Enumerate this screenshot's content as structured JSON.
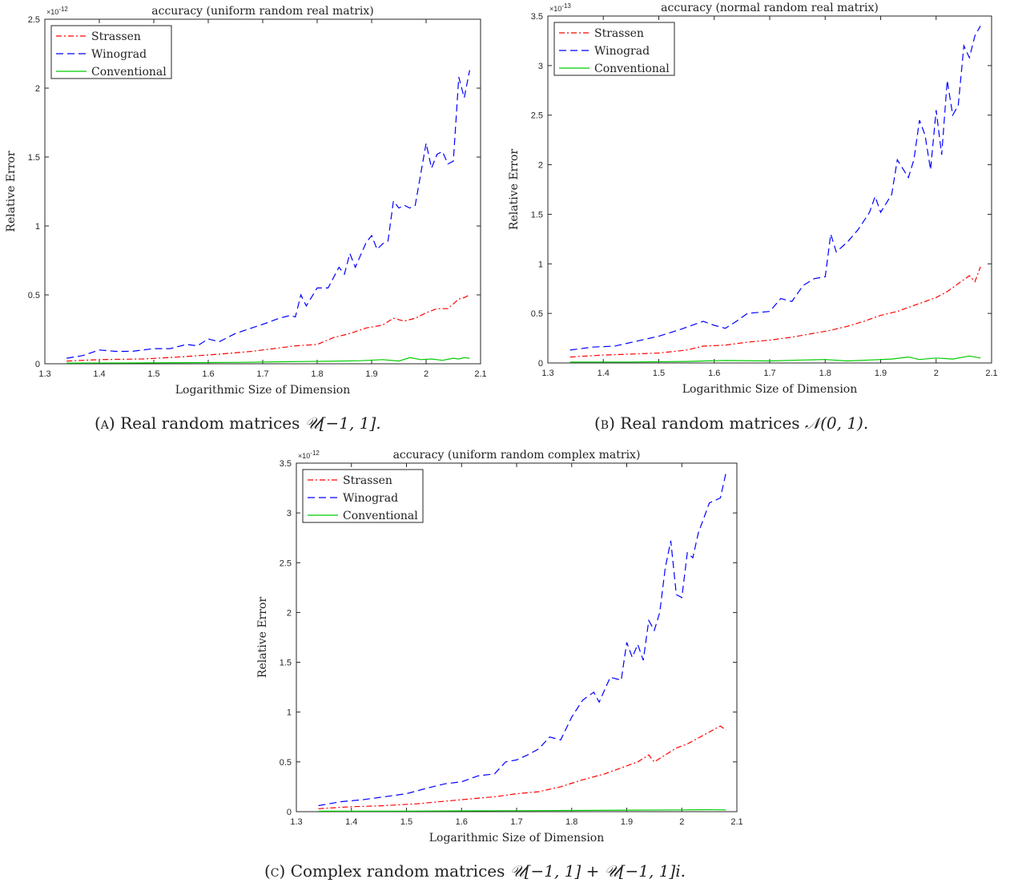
{
  "chart_data": [
    {
      "type": "line",
      "title": "accuracy (uniform random real matrix)",
      "xlabel": "Logarithmic Size of Dimension",
      "ylabel": "Relative Error",
      "exponent": "×10",
      "exponent_power": "-12",
      "xlim": [
        1.3,
        2.1
      ],
      "ylim": [
        0,
        2.5
      ],
      "xticks": [
        "1.3",
        "1.4",
        "1.5",
        "1.6",
        "1.7",
        "1.8",
        "1.9",
        "2",
        "2.1"
      ],
      "yticks": [
        "0",
        "0.5",
        "1",
        "1.5",
        "2",
        "2.5"
      ],
      "legend_position": "top-left",
      "grid": false,
      "series": [
        {
          "name": "Strassen",
          "color": "#ff0000",
          "dash": "dash-dot",
          "points": [
            [
              1.34,
              0.02
            ],
            [
              1.4,
              0.03
            ],
            [
              1.48,
              0.035
            ],
            [
              1.55,
              0.05
            ],
            [
              1.62,
              0.07
            ],
            [
              1.68,
              0.09
            ],
            [
              1.72,
              0.11
            ],
            [
              1.76,
              0.13
            ],
            [
              1.8,
              0.14
            ],
            [
              1.83,
              0.19
            ],
            [
              1.86,
              0.22
            ],
            [
              1.89,
              0.26
            ],
            [
              1.92,
              0.28
            ],
            [
              1.94,
              0.33
            ],
            [
              1.96,
              0.31
            ],
            [
              1.98,
              0.33
            ],
            [
              2.0,
              0.37
            ],
            [
              2.02,
              0.4
            ],
            [
              2.04,
              0.4
            ],
            [
              2.06,
              0.47
            ],
            [
              2.07,
              0.48
            ],
            [
              2.08,
              0.5
            ]
          ]
        },
        {
          "name": "Winograd",
          "color": "#0000ff",
          "dash": "dashed",
          "points": [
            [
              1.34,
              0.04
            ],
            [
              1.37,
              0.06
            ],
            [
              1.4,
              0.1
            ],
            [
              1.43,
              0.09
            ],
            [
              1.46,
              0.09
            ],
            [
              1.5,
              0.11
            ],
            [
              1.53,
              0.11
            ],
            [
              1.56,
              0.14
            ],
            [
              1.58,
              0.13
            ],
            [
              1.6,
              0.18
            ],
            [
              1.62,
              0.16
            ],
            [
              1.65,
              0.22
            ],
            [
              1.68,
              0.26
            ],
            [
              1.71,
              0.3
            ],
            [
              1.73,
              0.33
            ],
            [
              1.75,
              0.35
            ],
            [
              1.76,
              0.34
            ],
            [
              1.77,
              0.5
            ],
            [
              1.78,
              0.42
            ],
            [
              1.8,
              0.55
            ],
            [
              1.82,
              0.55
            ],
            [
              1.84,
              0.7
            ],
            [
              1.85,
              0.65
            ],
            [
              1.86,
              0.8
            ],
            [
              1.87,
              0.7
            ],
            [
              1.89,
              0.88
            ],
            [
              1.9,
              0.93
            ],
            [
              1.91,
              0.83
            ],
            [
              1.92,
              0.87
            ],
            [
              1.93,
              0.89
            ],
            [
              1.94,
              1.18
            ],
            [
              1.95,
              1.13
            ],
            [
              1.96,
              1.15
            ],
            [
              1.97,
              1.13
            ],
            [
              1.98,
              1.15
            ],
            [
              2.0,
              1.6
            ],
            [
              2.01,
              1.42
            ],
            [
              2.02,
              1.52
            ],
            [
              2.03,
              1.54
            ],
            [
              2.04,
              1.45
            ],
            [
              2.05,
              1.47
            ],
            [
              2.06,
              2.08
            ],
            [
              2.07,
              1.93
            ],
            [
              2.08,
              2.13
            ]
          ]
        },
        {
          "name": "Conventional",
          "color": "#00cc00",
          "dash": "solid",
          "points": [
            [
              1.34,
              0.005
            ],
            [
              1.45,
              0.006
            ],
            [
              1.55,
              0.008
            ],
            [
              1.65,
              0.01
            ],
            [
              1.75,
              0.015
            ],
            [
              1.82,
              0.018
            ],
            [
              1.88,
              0.022
            ],
            [
              1.92,
              0.03
            ],
            [
              1.95,
              0.02
            ],
            [
              1.97,
              0.045
            ],
            [
              1.99,
              0.03
            ],
            [
              2.01,
              0.035
            ],
            [
              2.03,
              0.025
            ],
            [
              2.05,
              0.04
            ],
            [
              2.06,
              0.035
            ],
            [
              2.07,
              0.045
            ],
            [
              2.08,
              0.04
            ]
          ]
        }
      ]
    },
    {
      "type": "line",
      "title": "accuracy (normal random real matrix)",
      "xlabel": "Logarithmic Size of Dimension",
      "ylabel": "Relative Error",
      "exponent": "×10",
      "exponent_power": "-13",
      "xlim": [
        1.3,
        2.1
      ],
      "ylim": [
        0,
        3.5
      ],
      "xticks": [
        "1.3",
        "1.4",
        "1.5",
        "1.6",
        "1.7",
        "1.8",
        "1.9",
        "2",
        "2.1"
      ],
      "yticks": [
        "0",
        "0.5",
        "1",
        "1.5",
        "2",
        "2.5",
        "3",
        "3.5"
      ],
      "legend_position": "top-left",
      "grid": false,
      "series": [
        {
          "name": "Strassen",
          "color": "#ff0000",
          "dash": "dash-dot",
          "points": [
            [
              1.34,
              0.06
            ],
            [
              1.4,
              0.08
            ],
            [
              1.45,
              0.09
            ],
            [
              1.5,
              0.1
            ],
            [
              1.55,
              0.13
            ],
            [
              1.58,
              0.17
            ],
            [
              1.62,
              0.18
            ],
            [
              1.66,
              0.21
            ],
            [
              1.7,
              0.23
            ],
            [
              1.74,
              0.26
            ],
            [
              1.78,
              0.3
            ],
            [
              1.81,
              0.33
            ],
            [
              1.84,
              0.37
            ],
            [
              1.87,
              0.42
            ],
            [
              1.9,
              0.48
            ],
            [
              1.93,
              0.52
            ],
            [
              1.96,
              0.58
            ],
            [
              1.98,
              0.62
            ],
            [
              2.0,
              0.66
            ],
            [
              2.02,
              0.72
            ],
            [
              2.04,
              0.8
            ],
            [
              2.06,
              0.88
            ],
            [
              2.07,
              0.82
            ],
            [
              2.08,
              0.97
            ]
          ]
        },
        {
          "name": "Winograd",
          "color": "#0000ff",
          "dash": "dashed",
          "points": [
            [
              1.34,
              0.13
            ],
            [
              1.38,
              0.16
            ],
            [
              1.42,
              0.17
            ],
            [
              1.46,
              0.22
            ],
            [
              1.5,
              0.27
            ],
            [
              1.54,
              0.34
            ],
            [
              1.58,
              0.42
            ],
            [
              1.6,
              0.38
            ],
            [
              1.62,
              0.35
            ],
            [
              1.64,
              0.42
            ],
            [
              1.66,
              0.5
            ],
            [
              1.7,
              0.52
            ],
            [
              1.72,
              0.65
            ],
            [
              1.74,
              0.62
            ],
            [
              1.76,
              0.78
            ],
            [
              1.78,
              0.85
            ],
            [
              1.8,
              0.87
            ],
            [
              1.81,
              1.3
            ],
            [
              1.82,
              1.12
            ],
            [
              1.84,
              1.22
            ],
            [
              1.86,
              1.35
            ],
            [
              1.88,
              1.52
            ],
            [
              1.89,
              1.68
            ],
            [
              1.9,
              1.52
            ],
            [
              1.92,
              1.7
            ],
            [
              1.93,
              2.05
            ],
            [
              1.95,
              1.87
            ],
            [
              1.96,
              2.05
            ],
            [
              1.97,
              2.45
            ],
            [
              1.98,
              2.3
            ],
            [
              1.99,
              1.95
            ],
            [
              2.0,
              2.55
            ],
            [
              2.01,
              2.1
            ],
            [
              2.02,
              2.85
            ],
            [
              2.03,
              2.5
            ],
            [
              2.04,
              2.6
            ],
            [
              2.05,
              3.2
            ],
            [
              2.06,
              3.08
            ],
            [
              2.07,
              3.3
            ],
            [
              2.08,
              3.4
            ]
          ]
        },
        {
          "name": "Conventional",
          "color": "#00cc00",
          "dash": "solid",
          "points": [
            [
              1.34,
              0.01
            ],
            [
              1.45,
              0.01
            ],
            [
              1.55,
              0.015
            ],
            [
              1.62,
              0.025
            ],
            [
              1.7,
              0.02
            ],
            [
              1.76,
              0.03
            ],
            [
              1.8,
              0.035
            ],
            [
              1.84,
              0.02
            ],
            [
              1.88,
              0.03
            ],
            [
              1.92,
              0.04
            ],
            [
              1.95,
              0.06
            ],
            [
              1.97,
              0.035
            ],
            [
              2.0,
              0.05
            ],
            [
              2.03,
              0.04
            ],
            [
              2.06,
              0.07
            ],
            [
              2.08,
              0.05
            ]
          ]
        }
      ]
    },
    {
      "type": "line",
      "title": "accuracy (uniform random complex matrix)",
      "xlabel": "Logarithmic Size of Dimension",
      "ylabel": "Relative Error",
      "exponent": "×10",
      "exponent_power": "-12",
      "xlim": [
        1.3,
        2.1
      ],
      "ylim": [
        0,
        3.5
      ],
      "xticks": [
        "1.3",
        "1.4",
        "1.5",
        "1.6",
        "1.7",
        "1.8",
        "1.9",
        "2",
        "2.1"
      ],
      "yticks": [
        "0",
        "0.5",
        "1",
        "1.5",
        "2",
        "2.5",
        "3",
        "3.5"
      ],
      "legend_position": "top-left",
      "grid": false,
      "series": [
        {
          "name": "Strassen",
          "color": "#ff0000",
          "dash": "dash-dot",
          "points": [
            [
              1.34,
              0.03
            ],
            [
              1.4,
              0.05
            ],
            [
              1.46,
              0.06
            ],
            [
              1.52,
              0.08
            ],
            [
              1.58,
              0.11
            ],
            [
              1.62,
              0.13
            ],
            [
              1.66,
              0.15
            ],
            [
              1.7,
              0.18
            ],
            [
              1.74,
              0.2
            ],
            [
              1.78,
              0.25
            ],
            [
              1.82,
              0.32
            ],
            [
              1.86,
              0.38
            ],
            [
              1.89,
              0.44
            ],
            [
              1.92,
              0.5
            ],
            [
              1.94,
              0.57
            ],
            [
              1.95,
              0.5
            ],
            [
              1.97,
              0.57
            ],
            [
              1.99,
              0.64
            ],
            [
              2.01,
              0.68
            ],
            [
              2.03,
              0.74
            ],
            [
              2.05,
              0.8
            ],
            [
              2.07,
              0.86
            ],
            [
              2.08,
              0.82
            ]
          ]
        },
        {
          "name": "Winograd",
          "color": "#0000ff",
          "dash": "dashed",
          "points": [
            [
              1.34,
              0.06
            ],
            [
              1.38,
              0.1
            ],
            [
              1.42,
              0.12
            ],
            [
              1.46,
              0.15
            ],
            [
              1.5,
              0.18
            ],
            [
              1.54,
              0.24
            ],
            [
              1.57,
              0.28
            ],
            [
              1.6,
              0.3
            ],
            [
              1.63,
              0.36
            ],
            [
              1.66,
              0.38
            ],
            [
              1.68,
              0.5
            ],
            [
              1.7,
              0.52
            ],
            [
              1.72,
              0.57
            ],
            [
              1.74,
              0.63
            ],
            [
              1.76,
              0.75
            ],
            [
              1.78,
              0.72
            ],
            [
              1.8,
              0.95
            ],
            [
              1.82,
              1.12
            ],
            [
              1.84,
              1.2
            ],
            [
              1.85,
              1.1
            ],
            [
              1.87,
              1.35
            ],
            [
              1.89,
              1.32
            ],
            [
              1.9,
              1.7
            ],
            [
              1.91,
              1.55
            ],
            [
              1.92,
              1.68
            ],
            [
              1.93,
              1.52
            ],
            [
              1.94,
              1.92
            ],
            [
              1.95,
              1.82
            ],
            [
              1.96,
              2.0
            ],
            [
              1.97,
              2.45
            ],
            [
              1.98,
              2.72
            ],
            [
              1.99,
              2.18
            ],
            [
              2.0,
              2.15
            ],
            [
              2.01,
              2.6
            ],
            [
              2.02,
              2.55
            ],
            [
              2.03,
              2.8
            ],
            [
              2.04,
              2.95
            ],
            [
              2.05,
              3.1
            ],
            [
              2.07,
              3.15
            ],
            [
              2.08,
              3.4
            ]
          ]
        },
        {
          "name": "Conventional",
          "color": "#00cc00",
          "dash": "solid",
          "points": [
            [
              1.34,
              0.005
            ],
            [
              1.5,
              0.006
            ],
            [
              1.6,
              0.008
            ],
            [
              1.7,
              0.01
            ],
            [
              1.8,
              0.012
            ],
            [
              1.9,
              0.015
            ],
            [
              2.0,
              0.018
            ],
            [
              2.05,
              0.02
            ],
            [
              2.08,
              0.018
            ]
          ]
        }
      ]
    }
  ],
  "captions": {
    "a": {
      "label": "(a)",
      "text": "Real random matrices ",
      "math": "𝒰[−1, 1]."
    },
    "b": {
      "label": "(b)",
      "text": "Real random matrices ",
      "math": "𝒩(0, 1)."
    },
    "c": {
      "label": "(c)",
      "text": "Complex random matrices ",
      "math": "𝒰[−1, 1] + 𝒰[−1, 1]i."
    }
  }
}
